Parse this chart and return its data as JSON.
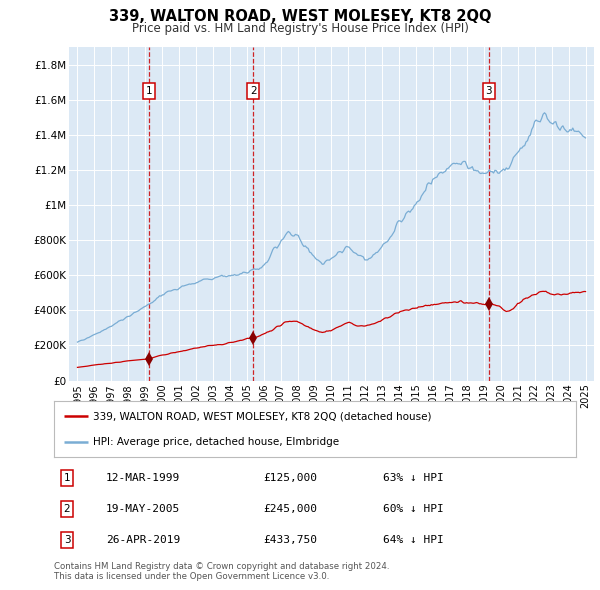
{
  "title": "339, WALTON ROAD, WEST MOLESEY, KT8 2QQ",
  "subtitle": "Price paid vs. HM Land Registry's House Price Index (HPI)",
  "plot_bg_color": "#dce9f5",
  "grid_color": "#ffffff",
  "hpi_color": "#7aadd4",
  "price_color": "#cc0000",
  "marker_color": "#880000",
  "sale_labels": [
    "1",
    "2",
    "3"
  ],
  "legend_label_red": "339, WALTON ROAD, WEST MOLESEY, KT8 2QQ (detached house)",
  "legend_label_blue": "HPI: Average price, detached house, Elmbridge",
  "table_rows": [
    {
      "num": "1",
      "date": "12-MAR-1999",
      "price": "£125,000",
      "hpi": "63% ↓ HPI"
    },
    {
      "num": "2",
      "date": "19-MAY-2005",
      "price": "£245,000",
      "hpi": "60% ↓ HPI"
    },
    {
      "num": "3",
      "date": "26-APR-2019",
      "price": "£433,750",
      "hpi": "64% ↓ HPI"
    }
  ],
  "footnote": "Contains HM Land Registry data © Crown copyright and database right 2024.\nThis data is licensed under the Open Government Licence v3.0.",
  "ylim": [
    0,
    1900000
  ],
  "yticks": [
    0,
    200000,
    400000,
    600000,
    800000,
    1000000,
    1200000,
    1400000,
    1600000,
    1800000
  ],
  "ytick_labels": [
    "£0",
    "£200K",
    "£400K",
    "£600K",
    "£800K",
    "£1M",
    "£1.2M",
    "£1.4M",
    "£1.6M",
    "£1.8M"
  ],
  "xlim": [
    1994.5,
    2025.5
  ],
  "xticks": [
    1995,
    1996,
    1997,
    1998,
    1999,
    2000,
    2001,
    2002,
    2003,
    2004,
    2005,
    2006,
    2007,
    2008,
    2009,
    2010,
    2011,
    2012,
    2013,
    2014,
    2015,
    2016,
    2017,
    2018,
    2019,
    2020,
    2021,
    2022,
    2023,
    2024,
    2025
  ]
}
